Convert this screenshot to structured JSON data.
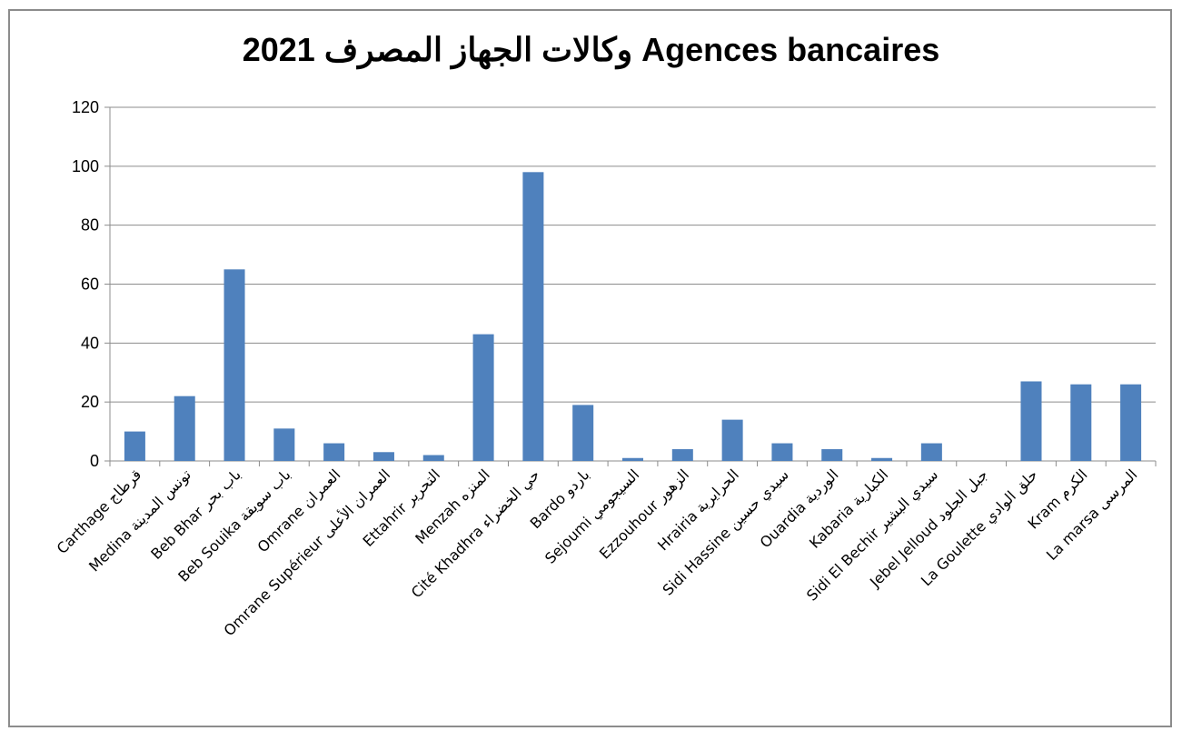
{
  "chart_data": {
    "type": "bar",
    "title": "وكالات الجهاز المصرف 2021  Agences bancaires",
    "xlabel": "",
    "ylabel": "",
    "ylim": [
      0,
      120
    ],
    "yticks": [
      0,
      20,
      40,
      60,
      80,
      100,
      120
    ],
    "grid": true,
    "legend": "none",
    "bar_color": "#4f81bd",
    "categories": [
      "Carthage قرطاج",
      "Medina تونس المدينة",
      "Beb Bhar باب بحر",
      "Beb Souika باب سويقة",
      "Omrane العمران",
      "Omrane Supérieur العمران الأعلى",
      "Ettahrir التحرير",
      "Menzah المنزه",
      "Cité Khadhra حي الخضراء",
      "Bardo باردو",
      "Sejoumi السيجومي",
      "Ezzouhour الزهور",
      "Hrairia الحرايرية",
      "Sidi Hassine سيدي حسين",
      "Ouardia الوردية",
      "Kabaria الكبارية",
      "Sidi El Bechir سيدي البشير",
      "Jebel Jelloud جبل الجلود",
      "La Goulette حلق الوادي",
      "Kram الكرم",
      "La marsa المرسى"
    ],
    "values": [
      10,
      22,
      65,
      11,
      6,
      3,
      2,
      43,
      98,
      19,
      1,
      4,
      14,
      6,
      4,
      1,
      6,
      0,
      27,
      26,
      26
    ]
  }
}
